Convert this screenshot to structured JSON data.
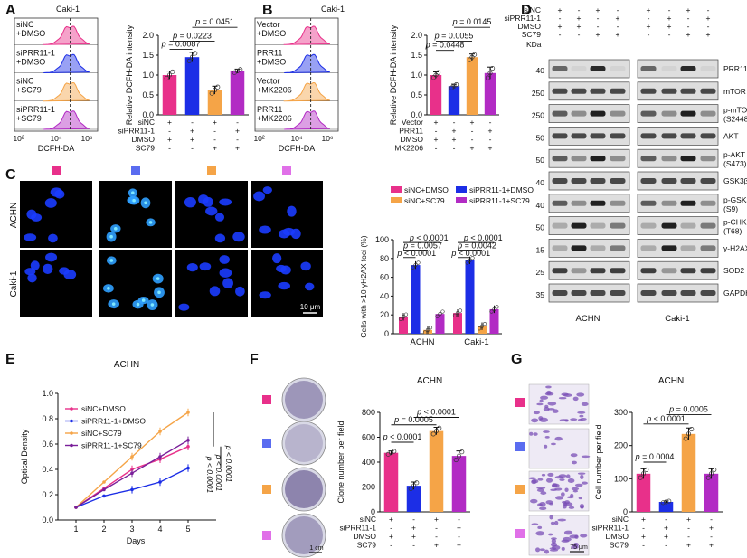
{
  "colors": {
    "pink": "#e8308a",
    "blue": "#1c2ee6",
    "orange": "#f5a447",
    "purple": "#b22bc4",
    "dark_purple": "#7a1f9a",
    "dapi": "#1b3cff",
    "blot_bg": "#dedede"
  },
  "panels": {
    "A": {
      "letter": "A",
      "cell": "Caki-1",
      "flow_labels": [
        "siNC\n+DMSO",
        "siPRR11-1\n+DMSO",
        "siNC\n+SC79",
        "siPRR11-1\n+SC79"
      ],
      "flow_xlabel": "DCFH-DA",
      "flow_ticks": [
        "10²",
        "10⁴",
        "10⁶"
      ],
      "ylabel": "Relative DCFH-DA  intensity",
      "pvals": [
        "p = 0.0451",
        "p = 0.0223",
        "p = 0.0087"
      ],
      "design_rows": [
        [
          "siNC",
          "+",
          "-",
          "+",
          "-"
        ],
        [
          "siPRR11-1",
          "-",
          "+",
          "-",
          "+"
        ],
        [
          "DMSO",
          "+",
          "+",
          "-",
          "-"
        ],
        [
          "SC79",
          "-",
          "-",
          "+",
          "+"
        ]
      ],
      "chart_data": {
        "type": "bar",
        "values": [
          1.0,
          1.45,
          0.62,
          1.1
        ],
        "errors": [
          0.1,
          0.12,
          0.1,
          0.05
        ],
        "ylim": [
          0,
          2.0
        ],
        "yticks": [
          "0.0",
          "0.5",
          "1.0",
          "1.5",
          "2.0"
        ]
      }
    },
    "B": {
      "letter": "B",
      "cell": "Caki-1",
      "flow_labels": [
        "Vector\n+DMSO",
        "PRR11\n+DMSO",
        "Vector\n+MK2206",
        "PRR11\n+MK2206"
      ],
      "flow_xlabel": "DCFH-DA",
      "flow_ticks": [
        "10²",
        "10⁴",
        "10⁶"
      ],
      "ylabel": "Relative DCFH-DA  intensity",
      "pvals": [
        "p = 0.0145",
        "p = 0.0055",
        "p = 0.0448"
      ],
      "design_rows": [
        [
          "Vector",
          "+",
          "-",
          "+",
          "-"
        ],
        [
          "PRR11",
          "-",
          "+",
          "-",
          "+"
        ],
        [
          "DMSO",
          "+",
          "+",
          "-",
          "-"
        ],
        [
          "MK2206",
          "-",
          "-",
          "+",
          "+"
        ]
      ],
      "chart_data": {
        "type": "bar",
        "values": [
          1.0,
          0.72,
          1.45,
          1.05
        ],
        "errors": [
          0.08,
          0.05,
          0.08,
          0.15
        ],
        "ylim": [
          0,
          2.0
        ],
        "yticks": [
          "0.0",
          "0.5",
          "1.0",
          "1.5",
          "2.0"
        ]
      }
    },
    "C": {
      "letter": "C",
      "row_labels": [
        "ACHN",
        "Caki-1"
      ],
      "scale": "10 μm",
      "legend": [
        "siNC+DMSO",
        "siNC+SC79",
        "siPRR11-1+DMSO",
        "siPRR11-1+SC79"
      ],
      "ylabel": "Cells with >10 γH2AX foci (%)",
      "pvals_achn": [
        "p < 0.0001",
        "p = 0.0057",
        "p < 0.0001"
      ],
      "pvals_caki": [
        "p < 0.0001",
        "p = 0.0042",
        "p < 0.0001"
      ],
      "chart_data": {
        "type": "bar",
        "categories": [
          "ACHN",
          "Caki-1"
        ],
        "series": [
          {
            "name": "siNC+DMSO",
            "values": [
              18,
              22
            ]
          },
          {
            "name": "siPRR11-1+DMSO",
            "values": [
              73,
              78
            ]
          },
          {
            "name": "siNC+SC79",
            "values": [
              4,
              8
            ]
          },
          {
            "name": "siPRR11-1+SC79",
            "values": [
              21,
              26
            ]
          }
        ],
        "ylim": [
          0,
          100
        ],
        "yticks": [
          "0",
          "20",
          "40",
          "60",
          "80",
          "100"
        ]
      }
    },
    "D": {
      "letter": "D",
      "design_rows": [
        [
          "siNC",
          "+",
          "-",
          "+",
          "-",
          "+",
          "-",
          "+",
          "-"
        ],
        [
          "siPRR11-1",
          "-",
          "+",
          "-",
          "+",
          "-",
          "+",
          "-",
          "+"
        ],
        [
          "DMSO",
          "+",
          "+",
          "-",
          "-",
          "+",
          "+",
          "-",
          "-"
        ],
        [
          "SC79",
          "-",
          "-",
          "+",
          "+",
          "-",
          "-",
          "+",
          "+"
        ]
      ],
      "kda_label": "KDa",
      "kda": [
        "40",
        "250",
        "250",
        "50",
        "50",
        "40",
        "40",
        "50",
        "15",
        "25",
        "35"
      ],
      "proteins": [
        "PRR11",
        "mTOR",
        "p-mTOR\n(S2448)",
        "AKT",
        "p-AKT\n(S473)",
        "GSK3β",
        "p-GSK3β\n(S9)",
        "p-CHK2\n(T68)",
        "γ-H2AX",
        "SOD2",
        "GAPDH"
      ],
      "cell_labels": [
        "ACHN",
        "Caki-1"
      ]
    },
    "E": {
      "letter": "E",
      "title": "ACHN",
      "ylabel": "Optical Density",
      "xlabel": "Days",
      "pvals": [
        "p < 0.0001",
        "p < 0.0001",
        "p < 0.0001"
      ],
      "chart_data": {
        "type": "line",
        "x": [
          1,
          2,
          3,
          4,
          5
        ],
        "series": [
          {
            "name": "siNC+DMSO",
            "values": [
              0.1,
              0.25,
              0.4,
              0.48,
              0.58
            ]
          },
          {
            "name": "siPRR11-1+DMSO",
            "values": [
              0.1,
              0.19,
              0.24,
              0.3,
              0.41
            ]
          },
          {
            "name": "siNC+SC79",
            "values": [
              0.1,
              0.3,
              0.5,
              0.7,
              0.85
            ]
          },
          {
            "name": "siPRR11-1+SC79",
            "values": [
              0.1,
              0.24,
              0.37,
              0.5,
              0.63
            ]
          }
        ],
        "ylim": [
          0,
          1.0
        ],
        "yticks": [
          "0.0",
          "0.2",
          "0.4",
          "0.6",
          "0.8",
          "1.0"
        ],
        "xticks": [
          "1",
          "2",
          "3",
          "4",
          "5"
        ]
      }
    },
    "F": {
      "letter": "F",
      "title": "ACHN",
      "scale": "1 cm",
      "ylabel": "Clone number per field",
      "pvals": [
        "p < 0.0001",
        "p = 0.0005",
        "p < 0.0001"
      ],
      "design_rows": [
        [
          "siNC",
          "+",
          "-",
          "+",
          "-"
        ],
        [
          "siPRR11-1",
          "-",
          "+",
          "-",
          "+"
        ],
        [
          "DMSO",
          "+",
          "+",
          "-",
          "-"
        ],
        [
          "SC79",
          "-",
          "-",
          "+",
          "+"
        ]
      ],
      "chart_data": {
        "type": "bar",
        "values": [
          475,
          210,
          650,
          450
        ],
        "errors": [
          15,
          30,
          30,
          40
        ],
        "ylim": [
          0,
          800
        ],
        "yticks": [
          "0",
          "200",
          "400",
          "600",
          "800"
        ]
      }
    },
    "G": {
      "letter": "G",
      "title": "ACHN",
      "scale": "75 μm",
      "ylabel": "Cell number per field",
      "pvals": [
        "p = 0.0005",
        "p < 0.0001",
        "p = 0.0004"
      ],
      "design_rows": [
        [
          "siNC",
          "+",
          "-",
          "+",
          "-"
        ],
        [
          "siPRR11-1",
          "-",
          "+",
          "-",
          "+"
        ],
        [
          "DMSO",
          "+",
          "+",
          "-",
          "-"
        ],
        [
          "SC79",
          "-",
          "-",
          "+",
          "+"
        ]
      ],
      "chart_data": {
        "type": "bar",
        "values": [
          115,
          30,
          235,
          115
        ],
        "errors": [
          15,
          3,
          18,
          15
        ],
        "ylim": [
          0,
          300
        ],
        "yticks": [
          "0",
          "100",
          "200",
          "300"
        ]
      }
    }
  }
}
